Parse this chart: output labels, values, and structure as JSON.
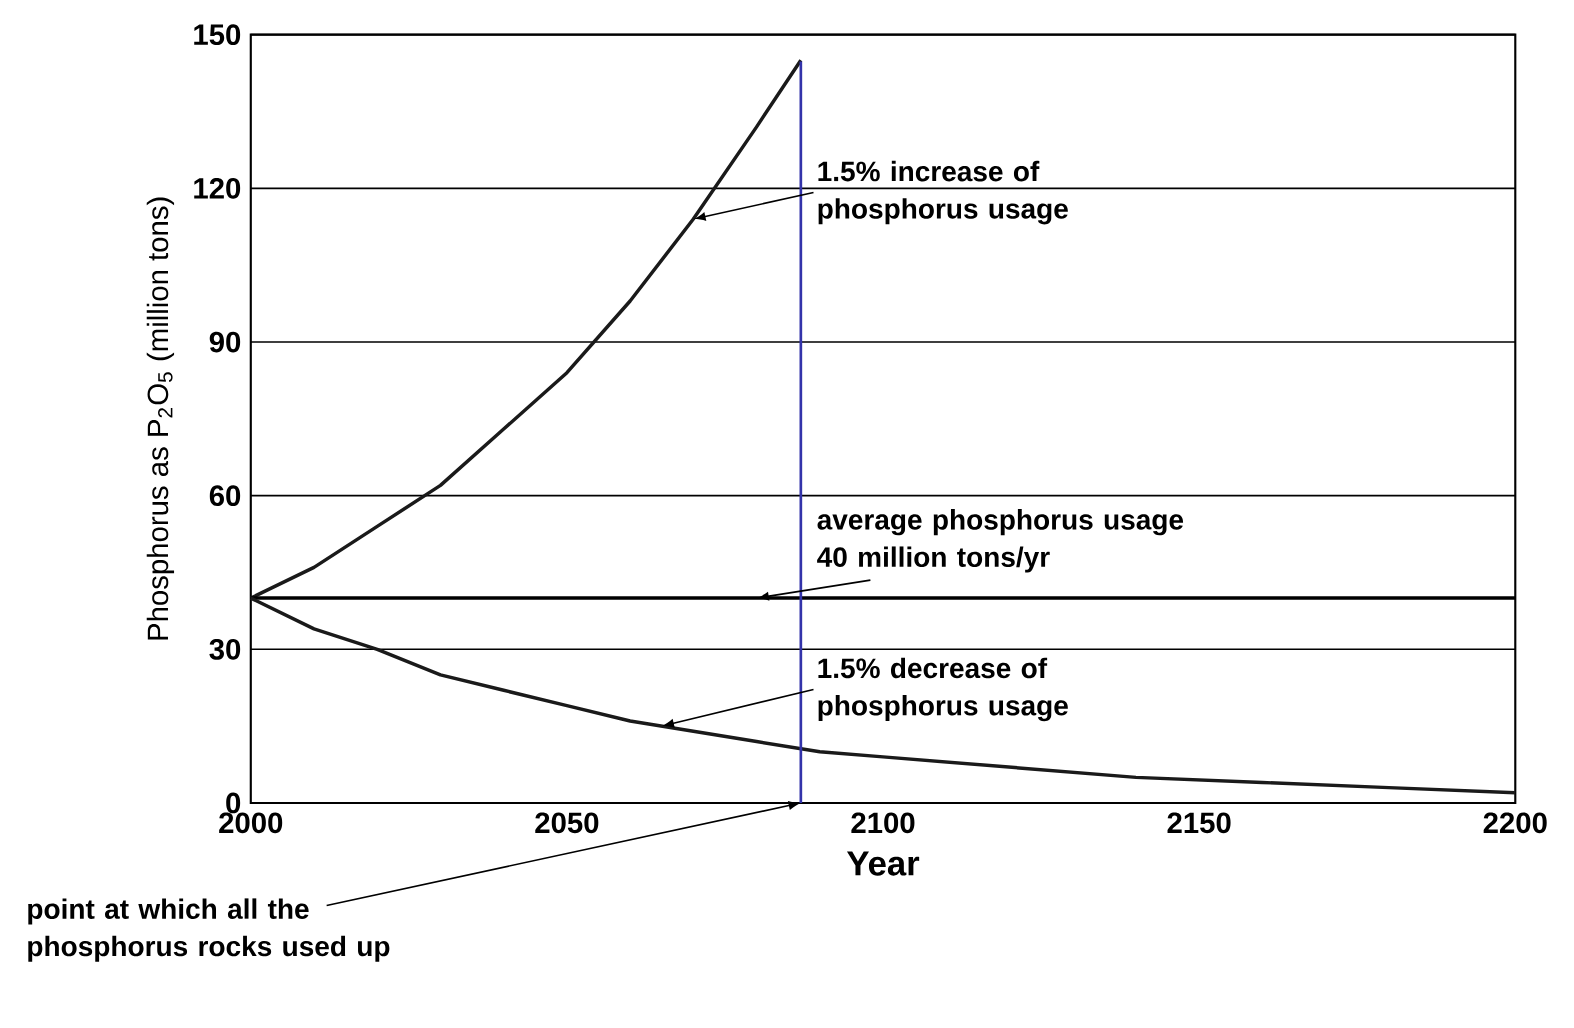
{
  "chart_data": {
    "type": "line",
    "xlabel": "Year",
    "ylabel": "Phosphorus as P$_{2}$O$_{5}$ (million tons)",
    "xlim": [
      2000,
      2200
    ],
    "ylim": [
      0,
      150
    ],
    "xticks": [
      2000,
      2050,
      2100,
      2150,
      2200
    ],
    "yticks": [
      0,
      30,
      60,
      90,
      120,
      150
    ],
    "grid": "y",
    "marker": "none",
    "line_style": "solid",
    "series": [
      {
        "color": "#1a1a1a",
        "x": [
          2000,
          2010,
          2020,
          2030,
          2040,
          2050,
          2060,
          2070,
          2080,
          2087
        ],
        "values": [
          40,
          46,
          54,
          62,
          73,
          84,
          98,
          114,
          132,
          145
        ]
      },
      {
        "color": "#000000",
        "x": [
          2000,
          2200
        ],
        "values": [
          40,
          40
        ]
      },
      {
        "color": "#1a1a1a",
        "x": [
          2000,
          2010,
          2020,
          2030,
          2040,
          2050,
          2060,
          2070,
          2080,
          2090,
          2100,
          2120,
          2140,
          2160,
          2180,
          2200
        ],
        "values": [
          40,
          34,
          30,
          25,
          22,
          19,
          16,
          14,
          12,
          10,
          9,
          7,
          5,
          4,
          3,
          2
        ]
      }
    ],
    "ref_lines": [
      {
        "axis": "x",
        "value": 2087,
        "color": "#3333aa"
      }
    ],
    "annotations": [
      {
        "text": "1.5% increase of phosphorus usage",
        "x": 2070,
        "y": 114
      },
      {
        "text": "average phosphorus usage 40 million tons/yr",
        "x": 2080,
        "y": 40
      },
      {
        "text": "1.5% decrease of phosphorus usage",
        "x": 2065,
        "y": 15
      },
      {
        "text": "point at which all the phosphorus rocks used up",
        "x": 2087,
        "y": 0
      }
    ]
  }
}
